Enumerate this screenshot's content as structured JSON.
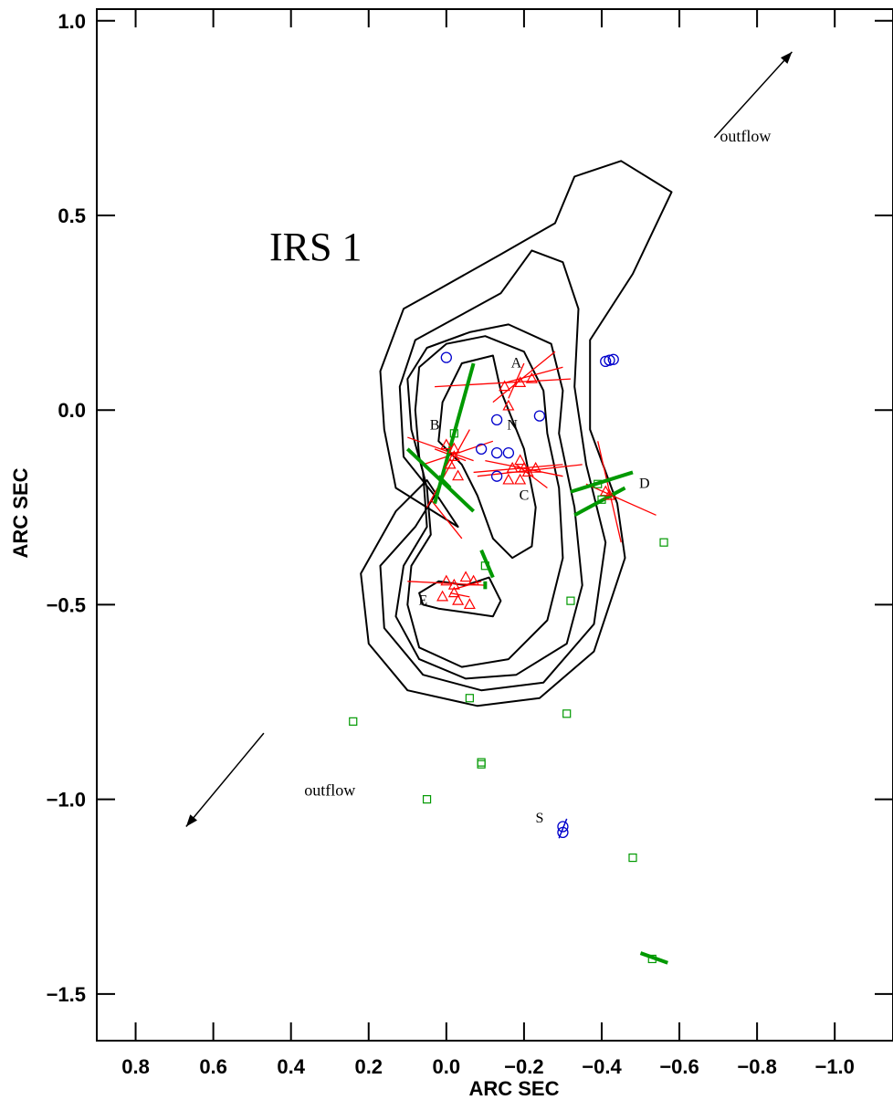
{
  "chart_data": {
    "type": "scatter",
    "title": "IRS 1",
    "xlabel": "ARC SEC",
    "ylabel": "ARC SEC",
    "xlim": [
      0.9,
      -1.15
    ],
    "ylim": [
      -1.62,
      1.03
    ],
    "x_reversed": true,
    "x_ticks": [
      0.8,
      0.6,
      0.4,
      0.2,
      0.0,
      -0.2,
      -0.4,
      -0.6,
      -0.8,
      -1.0
    ],
    "x_tick_labels": [
      "0.8",
      "0.6",
      "0.4",
      "0.2",
      "0.0",
      "−0.2",
      "−0.4",
      "−0.6",
      "−0.8",
      "−1.0"
    ],
    "y_ticks": [
      1.0,
      0.5,
      0.0,
      -0.5,
      -1.0,
      -1.5
    ],
    "y_tick_labels": [
      "1.0",
      "0.5",
      "0.0",
      "−0.5",
      "−1.0",
      "−1.5"
    ],
    "grid": false,
    "contours": [
      [
        [
          -0.03,
          -0.3
        ],
        [
          0.13,
          -0.2
        ],
        [
          0.16,
          -0.05
        ],
        [
          0.17,
          0.1
        ],
        [
          0.11,
          0.26
        ],
        [
          0.02,
          0.31
        ],
        [
          -0.14,
          0.4
        ],
        [
          -0.28,
          0.48
        ],
        [
          -0.33,
          0.6
        ],
        [
          -0.45,
          0.64
        ],
        [
          -0.58,
          0.56
        ],
        [
          -0.48,
          0.35
        ],
        [
          -0.37,
          0.18
        ],
        [
          -0.37,
          -0.05
        ],
        [
          -0.44,
          -0.24
        ],
        [
          -0.46,
          -0.38
        ],
        [
          -0.38,
          -0.62
        ],
        [
          -0.24,
          -0.74
        ],
        [
          -0.08,
          -0.76
        ],
        [
          0.1,
          -0.72
        ],
        [
          0.2,
          -0.6
        ],
        [
          0.22,
          -0.42
        ],
        [
          0.13,
          -0.26
        ],
        [
          0.05,
          -0.18
        ],
        [
          -0.03,
          -0.3
        ]
      ],
      [
        [
          0.03,
          -0.22
        ],
        [
          0.11,
          -0.12
        ],
        [
          0.12,
          0.06
        ],
        [
          0.08,
          0.18
        ],
        [
          -0.03,
          0.24
        ],
        [
          -0.14,
          0.3
        ],
        [
          -0.22,
          0.41
        ],
        [
          -0.3,
          0.38
        ],
        [
          -0.34,
          0.26
        ],
        [
          -0.33,
          0.06
        ],
        [
          -0.36,
          -0.14
        ],
        [
          -0.41,
          -0.34
        ],
        [
          -0.38,
          -0.55
        ],
        [
          -0.25,
          -0.7
        ],
        [
          -0.09,
          -0.72
        ],
        [
          0.06,
          -0.68
        ],
        [
          0.16,
          -0.56
        ],
        [
          0.17,
          -0.4
        ],
        [
          0.08,
          -0.3
        ],
        [
          0.03,
          -0.22
        ]
      ],
      [
        [
          0.06,
          -0.16
        ],
        [
          0.09,
          -0.05
        ],
        [
          0.1,
          0.08
        ],
        [
          0.05,
          0.16
        ],
        [
          -0.06,
          0.2
        ],
        [
          -0.16,
          0.22
        ],
        [
          -0.27,
          0.17
        ],
        [
          -0.3,
          0.05
        ],
        [
          -0.29,
          -0.06
        ],
        [
          -0.33,
          -0.25
        ],
        [
          -0.35,
          -0.45
        ],
        [
          -0.31,
          -0.6
        ],
        [
          -0.18,
          -0.68
        ],
        [
          -0.05,
          -0.69
        ],
        [
          0.07,
          -0.64
        ],
        [
          0.13,
          -0.53
        ],
        [
          0.11,
          -0.4
        ],
        [
          0.05,
          -0.3
        ],
        [
          0.06,
          -0.16
        ]
      ],
      [
        [
          0.07,
          -0.12
        ],
        [
          0.08,
          0.0
        ],
        [
          0.07,
          0.11
        ],
        [
          0.0,
          0.17
        ],
        [
          -0.1,
          0.19
        ],
        [
          -0.2,
          0.15
        ],
        [
          -0.25,
          0.05
        ],
        [
          -0.26,
          -0.06
        ],
        [
          -0.29,
          -0.2
        ],
        [
          -0.3,
          -0.38
        ],
        [
          -0.26,
          -0.54
        ],
        [
          -0.16,
          -0.64
        ],
        [
          -0.04,
          -0.66
        ],
        [
          0.07,
          -0.61
        ],
        [
          0.1,
          -0.5
        ],
        [
          0.09,
          -0.4
        ],
        [
          0.04,
          -0.32
        ],
        [
          0.05,
          -0.2
        ],
        [
          0.07,
          -0.12
        ]
      ],
      [
        [
          0.02,
          -0.08
        ],
        [
          0.01,
          0.02
        ],
        [
          -0.04,
          0.12
        ],
        [
          -0.12,
          0.14
        ],
        [
          -0.14,
          0.05
        ],
        [
          -0.2,
          -0.1
        ],
        [
          -0.23,
          -0.25
        ],
        [
          -0.22,
          -0.35
        ],
        [
          -0.17,
          -0.38
        ],
        [
          -0.12,
          -0.33
        ],
        [
          -0.08,
          -0.22
        ],
        [
          -0.04,
          -0.14
        ],
        [
          0.02,
          -0.08
        ]
      ],
      [
        [
          0.07,
          -0.47
        ],
        [
          0.02,
          -0.44
        ],
        [
          -0.05,
          -0.45
        ],
        [
          -0.11,
          -0.43
        ],
        [
          -0.14,
          -0.49
        ],
        [
          -0.12,
          -0.53
        ],
        [
          -0.05,
          -0.52
        ],
        [
          0.02,
          -0.51
        ],
        [
          0.06,
          -0.5
        ],
        [
          0.07,
          -0.47
        ]
      ]
    ],
    "series": [
      {
        "marker": "circle",
        "color": "#0000cc",
        "points": [
          [
            0.0,
            0.135
          ],
          [
            -0.41,
            0.125
          ],
          [
            -0.42,
            0.128
          ],
          [
            -0.43,
            0.13
          ],
          [
            -0.13,
            -0.025
          ],
          [
            -0.24,
            -0.015
          ],
          [
            -0.09,
            -0.1
          ],
          [
            -0.13,
            -0.11
          ],
          [
            -0.16,
            -0.11
          ],
          [
            -0.13,
            -0.17
          ],
          [
            -0.3,
            -1.07
          ],
          [
            -0.3,
            -1.085
          ]
        ]
      },
      {
        "marker": "triangle",
        "color": "#ff0000",
        "points": [
          [
            -0.19,
            0.07
          ],
          [
            -0.22,
            0.08
          ],
          [
            -0.15,
            0.06
          ],
          [
            -0.16,
            0.01
          ],
          [
            0.0,
            -0.09
          ],
          [
            -0.02,
            -0.1
          ],
          [
            -0.02,
            -0.12
          ],
          [
            -0.01,
            -0.14
          ],
          [
            -0.03,
            -0.17
          ],
          [
            -0.17,
            -0.15
          ],
          [
            -0.19,
            -0.13
          ],
          [
            -0.2,
            -0.15
          ],
          [
            -0.21,
            -0.16
          ],
          [
            -0.23,
            -0.15
          ],
          [
            -0.19,
            -0.18
          ],
          [
            -0.16,
            -0.18
          ],
          [
            -0.42,
            -0.22
          ],
          [
            -0.41,
            -0.21
          ],
          [
            0.0,
            -0.44
          ],
          [
            -0.02,
            -0.45
          ],
          [
            -0.05,
            -0.43
          ],
          [
            -0.07,
            -0.44
          ],
          [
            -0.02,
            -0.47
          ],
          [
            0.01,
            -0.48
          ],
          [
            -0.03,
            -0.49
          ],
          [
            -0.06,
            -0.5
          ]
        ]
      },
      {
        "marker": "square",
        "color": "#009900",
        "points": [
          [
            -0.02,
            -0.06
          ],
          [
            -0.39,
            -0.19
          ],
          [
            -0.4,
            -0.23
          ],
          [
            -0.56,
            -0.34
          ],
          [
            -0.1,
            -0.4
          ],
          [
            -0.32,
            -0.49
          ],
          [
            -0.06,
            -0.74
          ],
          [
            0.24,
            -0.8
          ],
          [
            -0.31,
            -0.78
          ],
          [
            -0.09,
            -0.905
          ],
          [
            -0.09,
            -0.91
          ],
          [
            0.05,
            -1.0
          ],
          [
            -0.48,
            -1.15
          ],
          [
            -0.53,
            -1.41
          ]
        ]
      }
    ],
    "red_vectors": [
      [
        [
          0.03,
          0.06
        ],
        [
          -0.32,
          0.08
        ]
      ],
      [
        [
          -0.12,
          0.02
        ],
        [
          -0.28,
          0.15
        ]
      ],
      [
        [
          -0.16,
          0.03
        ],
        [
          -0.2,
          0.12
        ]
      ],
      [
        [
          -0.15,
          0.07
        ],
        [
          -0.3,
          0.11
        ]
      ],
      [
        [
          0.1,
          -0.07
        ],
        [
          -0.07,
          -0.13
        ]
      ],
      [
        [
          0.06,
          -0.14
        ],
        [
          -0.12,
          -0.08
        ]
      ],
      [
        [
          0.03,
          -0.1
        ],
        [
          -0.05,
          -0.13
        ]
      ],
      [
        [
          0.05,
          -0.25
        ],
        [
          -0.06,
          -0.05
        ]
      ],
      [
        [
          0.04,
          -0.23
        ],
        [
          -0.04,
          -0.33
        ]
      ],
      [
        [
          -0.08,
          -0.17
        ],
        [
          -0.35,
          -0.14
        ]
      ],
      [
        [
          -0.1,
          -0.13
        ],
        [
          -0.3,
          -0.17
        ]
      ],
      [
        [
          -0.07,
          -0.16
        ],
        [
          -0.3,
          -0.14
        ]
      ],
      [
        [
          -0.18,
          -0.14
        ],
        [
          -0.26,
          -0.2
        ]
      ],
      [
        [
          -0.39,
          -0.08
        ],
        [
          -0.45,
          -0.34
        ]
      ],
      [
        [
          -0.36,
          -0.19
        ],
        [
          -0.54,
          -0.27
        ]
      ],
      [
        [
          0.1,
          -0.44
        ],
        [
          -0.1,
          -0.45
        ]
      ],
      [
        [
          -0.02,
          -0.46
        ],
        [
          -0.09,
          -0.44
        ]
      ],
      [
        [
          -0.01,
          -0.47
        ],
        [
          -0.06,
          -0.48
        ]
      ]
    ],
    "green_vectors": [
      [
        [
          0.03,
          -0.24
        ],
        [
          -0.07,
          0.12
        ]
      ],
      [
        [
          0.1,
          -0.1
        ],
        [
          -0.07,
          -0.26
        ]
      ],
      [
        [
          0.02,
          -0.17
        ],
        [
          -0.01,
          -0.2
        ]
      ],
      [
        [
          -0.32,
          -0.21
        ],
        [
          -0.48,
          -0.16
        ]
      ],
      [
        [
          -0.33,
          -0.27
        ],
        [
          -0.46,
          -0.2
        ]
      ],
      [
        [
          -0.09,
          -0.36
        ],
        [
          -0.12,
          -0.43
        ]
      ],
      [
        [
          -0.1,
          -0.44
        ],
        [
          -0.1,
          -0.46
        ]
      ],
      [
        [
          -0.5,
          -1.395
        ],
        [
          -0.57,
          -1.42
        ]
      ]
    ],
    "blue_vectors": [
      [
        [
          -0.29,
          -1.1
        ],
        [
          -0.31,
          -1.05
        ]
      ]
    ],
    "point_labels": [
      {
        "text": "A",
        "x": -0.18,
        "y": 0.11
      },
      {
        "text": "B",
        "x": 0.03,
        "y": -0.05
      },
      {
        "text": "N",
        "x": -0.17,
        "y": -0.05
      },
      {
        "text": "C",
        "x": -0.2,
        "y": -0.23
      },
      {
        "text": "D",
        "x": -0.51,
        "y": -0.2
      },
      {
        "text": "E",
        "x": 0.06,
        "y": -0.5
      },
      {
        "text": "S",
        "x": -0.24,
        "y": -1.06
      }
    ],
    "annotations": [
      {
        "text": "outflow",
        "x": -0.77,
        "y": 0.69,
        "arrow_from": [
          -0.69,
          0.7
        ],
        "arrow_to": [
          -0.89,
          0.92
        ]
      },
      {
        "text": "outflow",
        "x": 0.3,
        "y": -0.99,
        "arrow_from": [
          0.47,
          -0.83
        ],
        "arrow_to": [
          0.67,
          -1.07
        ]
      }
    ]
  }
}
